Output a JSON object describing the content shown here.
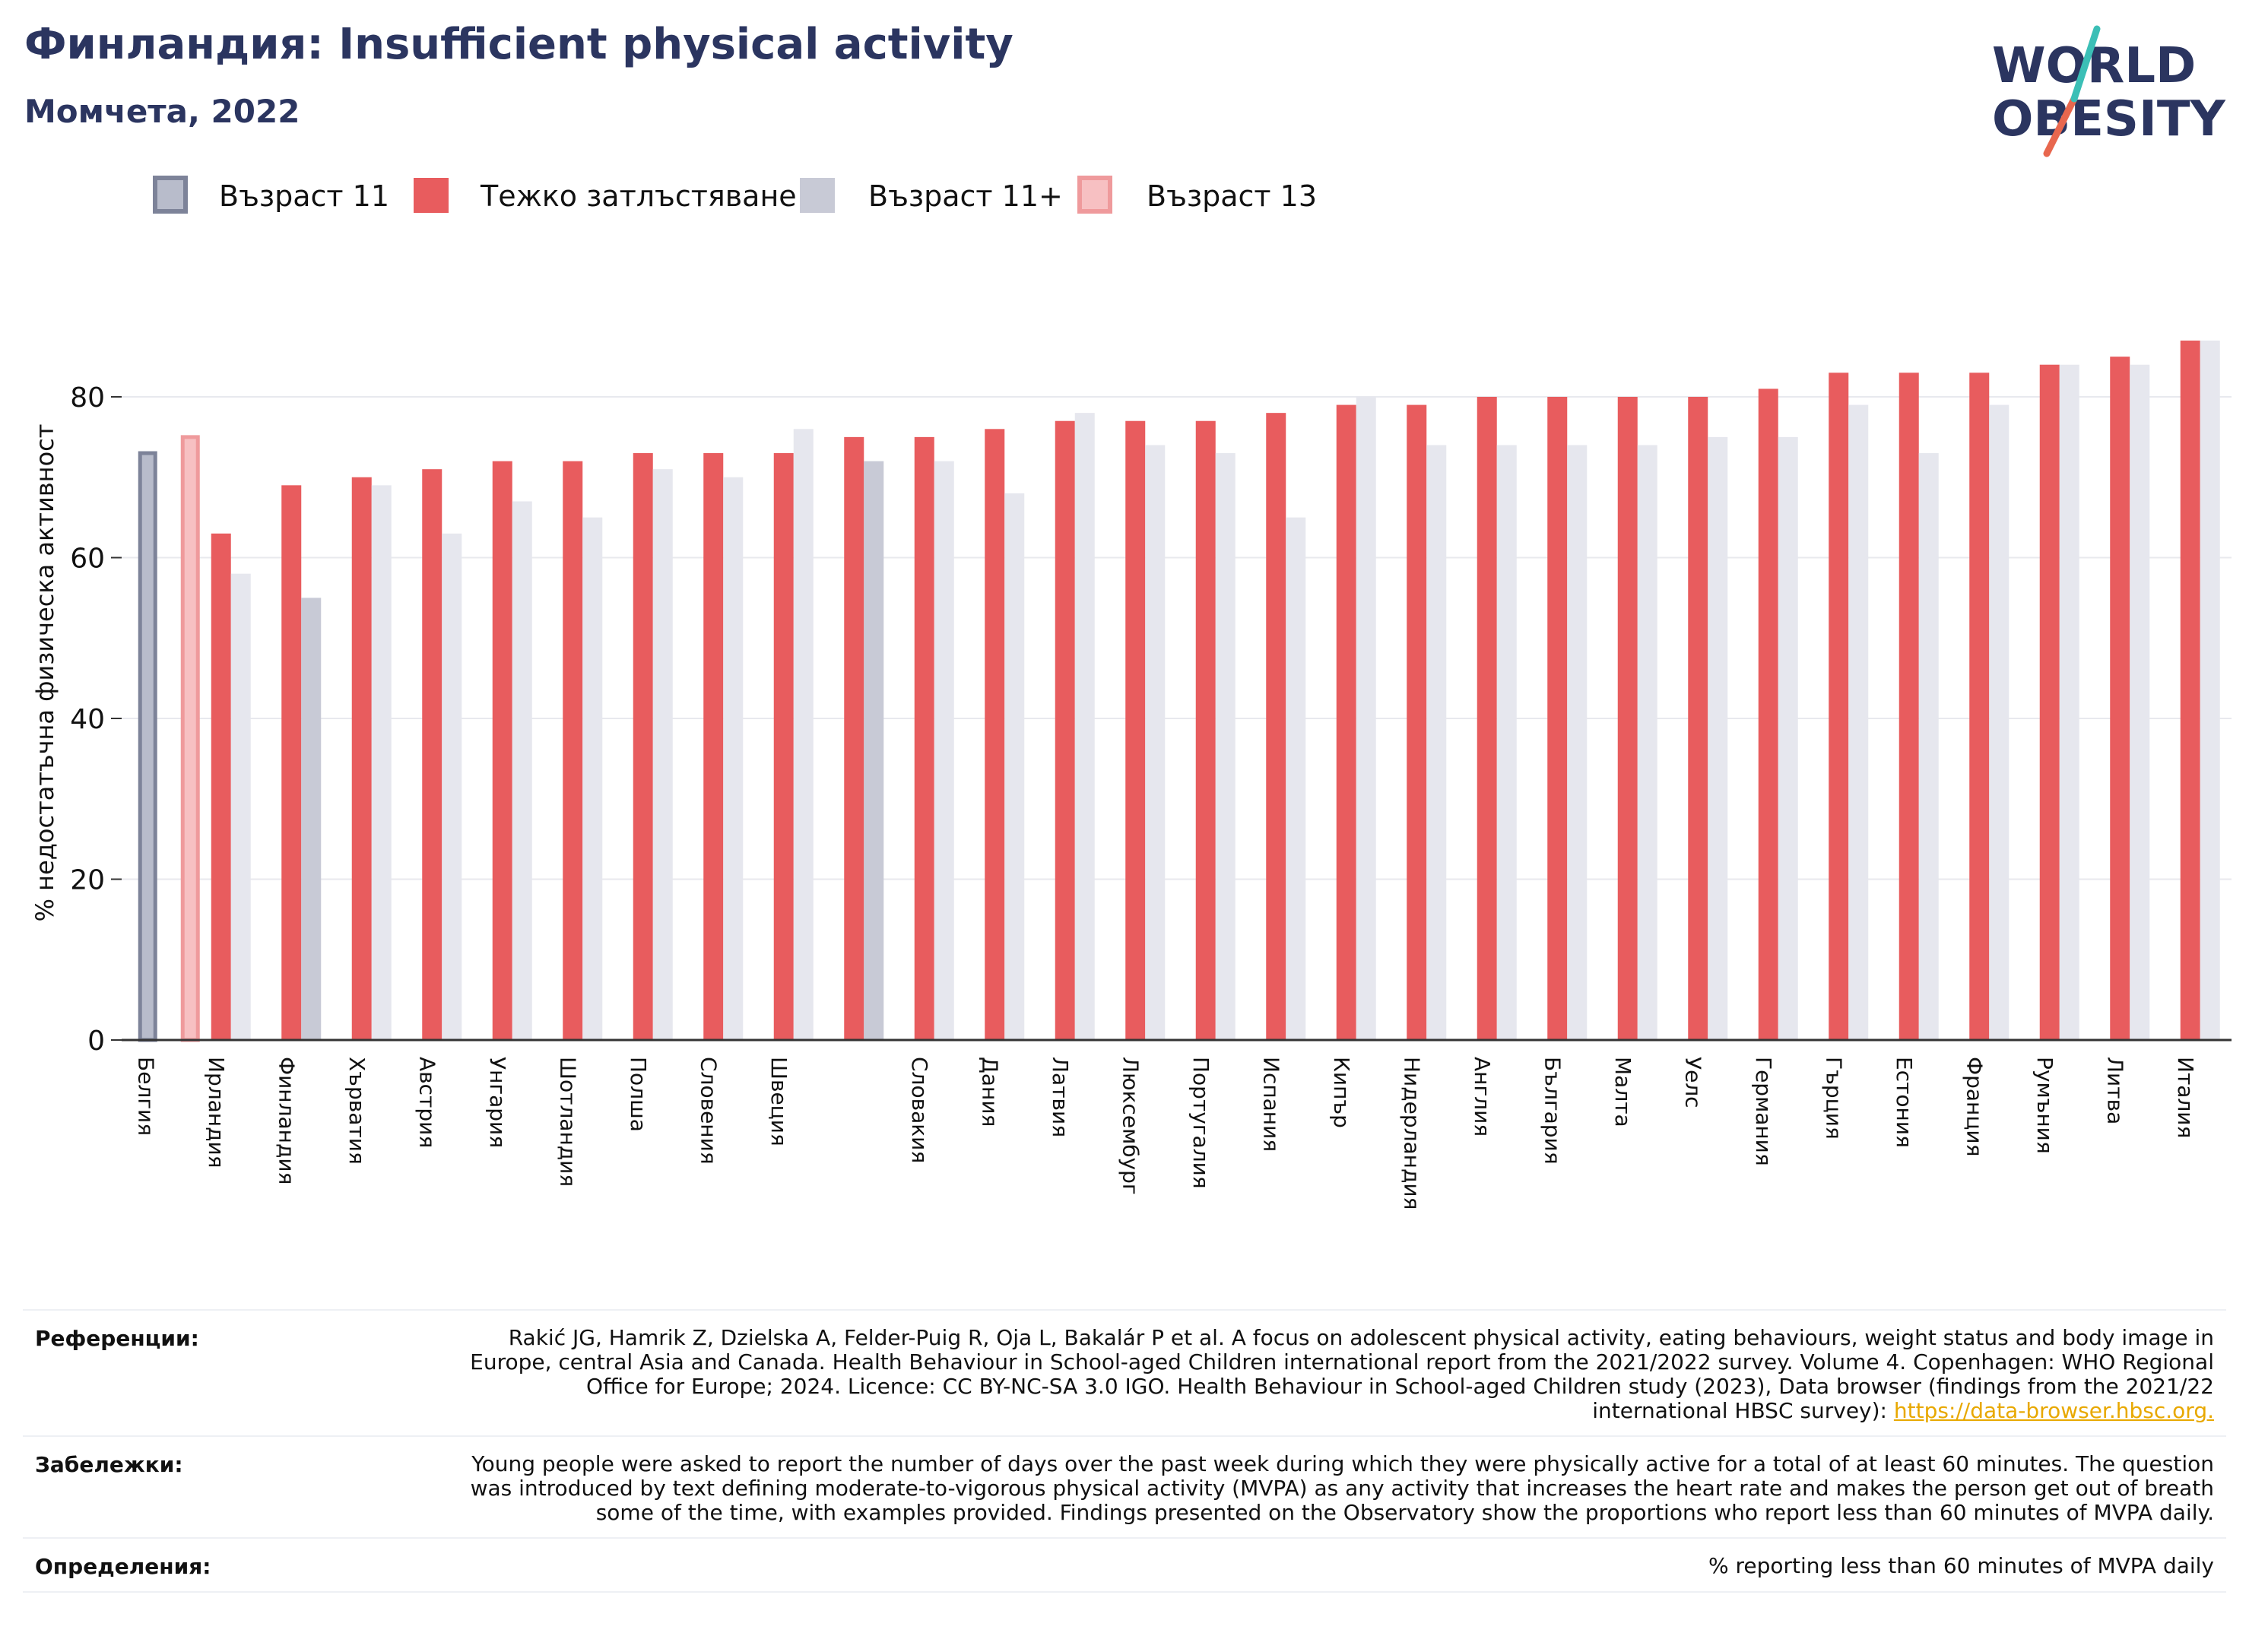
{
  "header": {
    "title": "Финландия: Insufficient physical activity",
    "subtitle": "Момчета, 2022"
  },
  "logo": {
    "line1": "WORLD",
    "line2": "OBESITY"
  },
  "colors": {
    "age11": "#b8bccb",
    "age11_stroke": "#7d8399",
    "severe": "#e85c5e",
    "age11plus": "#c8cad6",
    "age11plus_light": "#e6e7ee",
    "age13": "#f7c0c2",
    "age13_stroke": "#ef9a9c",
    "title": "#2b3560",
    "link": "#e8a800"
  },
  "chart_data": {
    "type": "bar",
    "ylabel": "% недостатъчна физическа активност",
    "ylim": [
      0,
      90
    ],
    "yticks": [
      0,
      20,
      40,
      60,
      80
    ],
    "grid": true,
    "legend_position": "top-left",
    "legend": [
      {
        "name": "Възраст 11",
        "key": "age11"
      },
      {
        "name": "Тежко затлъстяване",
        "key": "severe"
      },
      {
        "name": "Възраст 11+",
        "key": "age11plus"
      },
      {
        "name": "Възраст 13",
        "key": "age13"
      }
    ],
    "highlight": {
      "age11": 73,
      "age13": 75
    },
    "categories": [
      "Белгия",
      "Ирландия",
      "Финландия",
      "Хърватия",
      "Австрия",
      "Унгария",
      "Шотландия",
      "Полша",
      "Словения",
      "Швеция",
      "",
      "Словакия",
      "Дания",
      "Латвия",
      "Люксембург",
      "Португалия",
      "Испания",
      "Кипър",
      "Нидерландия",
      "Англия",
      "България",
      "Малта",
      "Уелс",
      "Германия",
      "Гърция",
      "Естония",
      "Франция",
      "Румъния",
      "Литва",
      "Италия"
    ],
    "series": [
      {
        "name": "Тежко затлъстяване",
        "key": "severe",
        "values": [
          null,
          63,
          69,
          70,
          71,
          72,
          72,
          73,
          73,
          73,
          75,
          75,
          76,
          77,
          77,
          77,
          78,
          79,
          79,
          80,
          80,
          80,
          80,
          81,
          83,
          83,
          83,
          84,
          85,
          87
        ]
      },
      {
        "name": "Възраст 11+",
        "key": "age11plus",
        "values": [
          null,
          58,
          55,
          69,
          63,
          67,
          65,
          71,
          70,
          76,
          72,
          72,
          68,
          78,
          74,
          73,
          65,
          80,
          74,
          74,
          74,
          74,
          75,
          75,
          79,
          73,
          79,
          84,
          84,
          87
        ]
      }
    ]
  },
  "notes": {
    "references_label": "Референции:",
    "references_text": "Rakić JG, Hamrik Z, Dzielska A, Felder-Puig R, Oja L, Bakalár P et al. A focus on adolescent physical activity, eating behaviours, weight status and body image in Europe, central Asia and Canada. Health Behaviour in School-aged Children international report from the 2021/2022 survey. Volume 4. Copenhagen: WHO Regional Office for Europe; 2024. Licence: CC BY-NC-SA 3.0 IGO. Health Behaviour in School-aged Children study (2023), Data browser (findings from the 2021/22 international HBSC survey): ",
    "references_link": "https://data-browser.hbsc.org.",
    "remarks_label": "Забележки:",
    "remarks_text": "Young people were asked to report the number of days over the past week during which they were physically active for a total of at least 60 minutes. The question was introduced by text defining moderate-to-vigorous physical activity (MVPA) as any activity that increases the heart rate and makes the person get out of breath some of the time, with examples provided. Findings presented on the Observatory show the proportions who report less than 60 minutes of MVPA daily.",
    "definitions_label": "Определения:",
    "definitions_text": "% reporting less than 60 minutes of MVPA daily"
  }
}
